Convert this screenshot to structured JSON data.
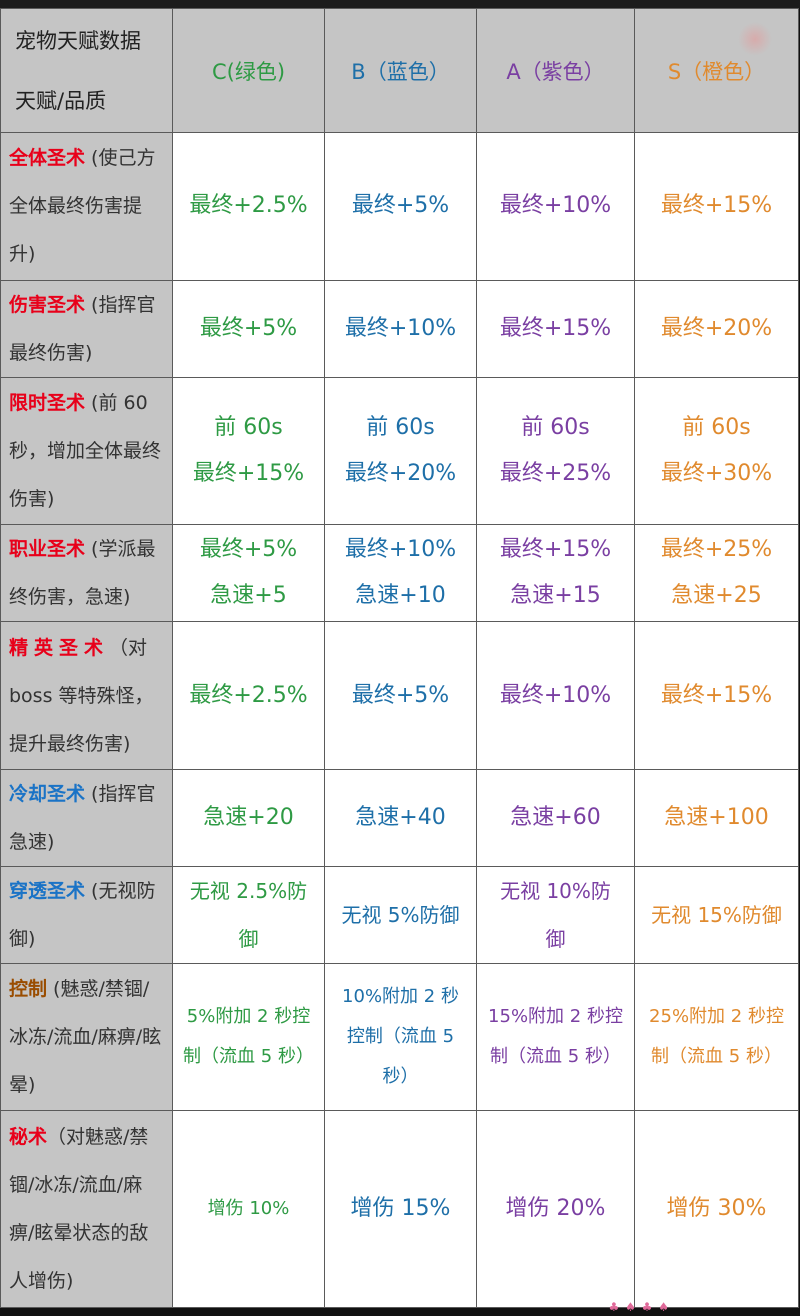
{
  "header": {
    "corner_line1": "宠物天赋数据",
    "corner_line2": "天赋/品质",
    "qualities": [
      "C(绿色)",
      "B（蓝色）",
      "A（紫色）",
      "S（橙色）"
    ]
  },
  "colors": {
    "green": "#2e9a44",
    "blue": "#1e6fa8",
    "purple": "#7a3fa2",
    "orange": "#e08a2e",
    "key_red": "#e8001a",
    "key_blue": "#1a73c6",
    "key_brown": "#9a4d00"
  },
  "rows": [
    {
      "key": "全体圣术",
      "desc_lines": [
        " (使己方",
        "全体最终伤害提",
        "升)"
      ],
      "values": [
        [
          "最终+2.5%"
        ],
        [
          "最终+5%"
        ],
        [
          "最终+10%"
        ],
        [
          "最终+15%"
        ]
      ]
    },
    {
      "key": "伤害圣术",
      "desc_lines": " (指挥官最终伤害)",
      "values": [
        [
          "最终+5%"
        ],
        [
          "最终+10%"
        ],
        [
          "最终+15%"
        ],
        [
          "最终+20%"
        ]
      ]
    },
    {
      "key": "限时圣术",
      "desc_lines": " (前 60 秒，增加全体最终伤害)",
      "values": [
        [
          "前 60s",
          "最终+15%"
        ],
        [
          "前 60s",
          "最终+20%"
        ],
        [
          "前 60s",
          "最终+25%"
        ],
        [
          "前 60s",
          "最终+30%"
        ]
      ]
    },
    {
      "key": "职业圣术",
      "desc_lines": " (学派最终伤害，急速)",
      "values": [
        [
          "最终+5%",
          "急速+5"
        ],
        [
          "最终+10%",
          "急速+10"
        ],
        [
          "最终+15%",
          "急速+15"
        ],
        [
          "最终+25%",
          "急速+25"
        ]
      ]
    },
    {
      "key": "精英圣术",
      "desc_lines": "（对 boss 等特殊怪，提升最终伤害)",
      "values": [
        [
          "最终+2.5%"
        ],
        [
          "最终+5%"
        ],
        [
          "最终+10%"
        ],
        [
          "最终+15%"
        ]
      ]
    },
    {
      "key": "冷却圣术",
      "desc_lines": " (指挥官急速)",
      "values": [
        [
          "急速+20"
        ],
        [
          "急速+40"
        ],
        [
          "急速+60"
        ],
        [
          "急速+100"
        ]
      ]
    },
    {
      "key": "穿透圣术",
      "desc_lines": " (无视防御)",
      "values": [
        [
          "无视 2.5%防",
          "御"
        ],
        [
          "无视 5%防御"
        ],
        [
          "无视 10%防",
          "御"
        ],
        [
          "无视 15%防御"
        ]
      ]
    },
    {
      "key": "控制",
      "desc_lines": " (魅惑/禁锢/冰冻/流血/麻痹/眩晕)",
      "values": [
        [
          "5%附加 2 秒控",
          "制（流血 5 秒）"
        ],
        [
          "10%附加 2 秒",
          "控制（流血 5",
          "秒）"
        ],
        [
          "15%附加 2 秒控",
          "制（流血 5 秒）"
        ],
        [
          "25%附加 2 秒控",
          "制（流血 5 秒）"
        ]
      ]
    },
    {
      "key": "秘术",
      "desc_lines": "（对魅惑/禁锢/冰冻/流血/麻痹/眩晕状态的敌人增伤)",
      "values": [
        [
          "增伤 10%"
        ],
        [
          "增伤 15%"
        ],
        [
          "增伤 20%"
        ],
        [
          "增伤 30%"
        ]
      ]
    }
  ],
  "footer_mark": "♣ ♠ ♣ ♠"
}
